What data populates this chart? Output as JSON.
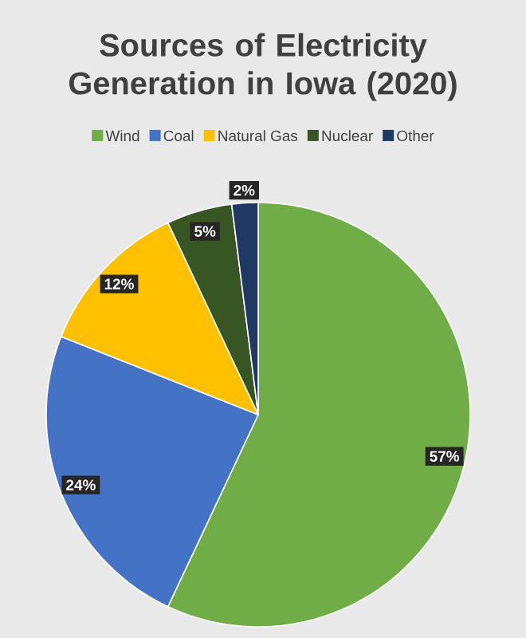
{
  "chart_data": {
    "type": "pie",
    "title": "Sources of Electricity Generation in Iowa (2020)",
    "categories": [
      "Wind",
      "Coal",
      "Natural Gas",
      "Nuclear",
      "Other"
    ],
    "values": [
      57,
      24,
      12,
      5,
      2
    ],
    "colors": [
      "#70ad47",
      "#4472c4",
      "#ffc000",
      "#375623",
      "#203864"
    ],
    "value_labels": [
      "57%",
      "24%",
      "12%",
      "5%",
      "2%"
    ],
    "legend": "top"
  }
}
